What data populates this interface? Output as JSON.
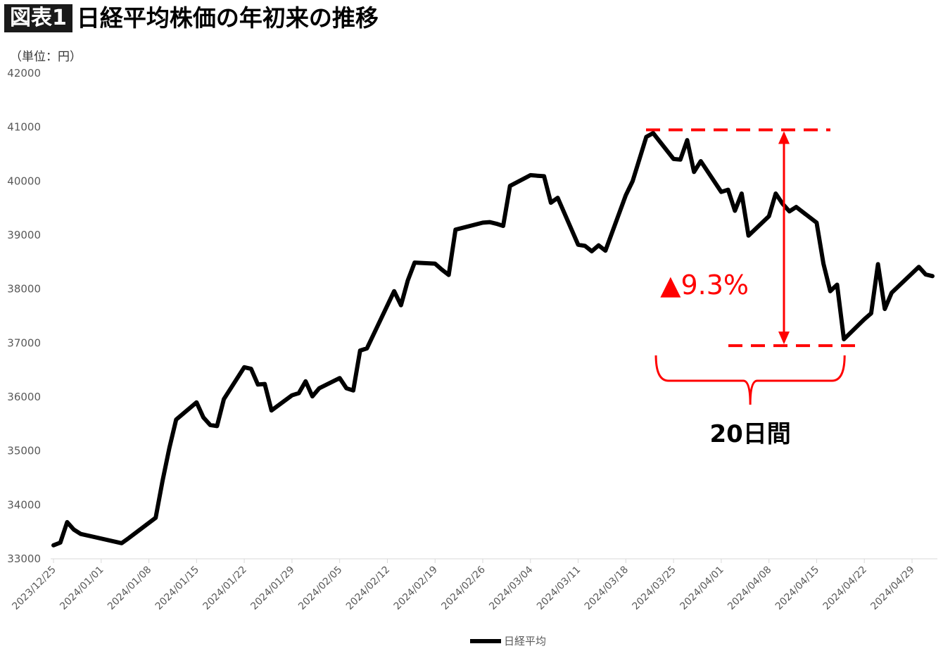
{
  "header": {
    "badge": "図表1",
    "title": "日経平均株価の年初来の推移"
  },
  "unit_label": "（単位：円）",
  "colors": {
    "line": "#000000",
    "annotation": "#ff0000",
    "tick_text": "#595959"
  },
  "chart_data": {
    "type": "line",
    "title": "日経平均株価の年初来の推移",
    "xlabel": "",
    "ylabel": "（単位：円）",
    "ylim": [
      33000,
      42000
    ],
    "yticks": [
      "33000",
      "34000",
      "35000",
      "36000",
      "37000",
      "38000",
      "39000",
      "40000",
      "41000",
      "42000"
    ],
    "xticks": [
      "2023/12/25",
      "2024/01/01",
      "2024/01/08",
      "2024/01/15",
      "2024/01/22",
      "2024/01/29",
      "2024/02/05",
      "2024/02/12",
      "2024/02/19",
      "2024/02/26",
      "2024/03/04",
      "2024/03/11",
      "2024/03/18",
      "2024/03/25",
      "2024/04/01",
      "2024/04/08",
      "2024/04/15",
      "2024/04/22",
      "2024/04/29"
    ],
    "legend": "bottom",
    "grid": false,
    "series": [
      {
        "name": "日経平均",
        "points": [
          [
            "2023/12/25",
            33250
          ],
          [
            "2023/12/26",
            33300
          ],
          [
            "2023/12/27",
            33680
          ],
          [
            "2023/12/28",
            33540
          ],
          [
            "2023/12/29",
            33460
          ],
          [
            "2024/01/04",
            33290
          ],
          [
            "2024/01/05",
            33380
          ],
          [
            "2024/01/09",
            33760
          ],
          [
            "2024/01/10",
            34440
          ],
          [
            "2024/01/11",
            35050
          ],
          [
            "2024/01/12",
            35580
          ],
          [
            "2024/01/15",
            35900
          ],
          [
            "2024/01/16",
            35620
          ],
          [
            "2024/01/17",
            35480
          ],
          [
            "2024/01/18",
            35460
          ],
          [
            "2024/01/19",
            35960
          ],
          [
            "2024/01/22",
            36550
          ],
          [
            "2024/01/23",
            36520
          ],
          [
            "2024/01/24",
            36230
          ],
          [
            "2024/01/25",
            36240
          ],
          [
            "2024/01/26",
            35750
          ],
          [
            "2024/01/29",
            36030
          ],
          [
            "2024/01/30",
            36070
          ],
          [
            "2024/01/31",
            36290
          ],
          [
            "2024/02/01",
            36010
          ],
          [
            "2024/02/02",
            36160
          ],
          [
            "2024/02/05",
            36350
          ],
          [
            "2024/02/06",
            36160
          ],
          [
            "2024/02/07",
            36120
          ],
          [
            "2024/02/08",
            36860
          ],
          [
            "2024/02/09",
            36900
          ],
          [
            "2024/02/13",
            37960
          ],
          [
            "2024/02/14",
            37700
          ],
          [
            "2024/02/15",
            38160
          ],
          [
            "2024/02/16",
            38490
          ],
          [
            "2024/02/19",
            38470
          ],
          [
            "2024/02/20",
            38360
          ],
          [
            "2024/02/21",
            38260
          ],
          [
            "2024/02/22",
            39100
          ],
          [
            "2024/02/26",
            39230
          ],
          [
            "2024/02/27",
            39240
          ],
          [
            "2024/02/28",
            39210
          ],
          [
            "2024/02/29",
            39170
          ],
          [
            "2024/03/01",
            39910
          ],
          [
            "2024/03/04",
            40110
          ],
          [
            "2024/03/05",
            40100
          ],
          [
            "2024/03/06",
            40090
          ],
          [
            "2024/03/07",
            39600
          ],
          [
            "2024/03/08",
            39690
          ],
          [
            "2024/03/11",
            38820
          ],
          [
            "2024/03/12",
            38800
          ],
          [
            "2024/03/13",
            38700
          ],
          [
            "2024/03/14",
            38810
          ],
          [
            "2024/03/15",
            38710
          ],
          [
            "2024/03/18",
            39740
          ],
          [
            "2024/03/19",
            40000
          ],
          [
            "2024/03/21",
            40820
          ],
          [
            "2024/03/22",
            40890
          ],
          [
            "2024/03/25",
            40410
          ],
          [
            "2024/03/26",
            40400
          ],
          [
            "2024/03/27",
            40760
          ],
          [
            "2024/03/28",
            40170
          ],
          [
            "2024/03/29",
            40370
          ],
          [
            "2024/04/01",
            39800
          ],
          [
            "2024/04/02",
            39840
          ],
          [
            "2024/04/03",
            39450
          ],
          [
            "2024/04/04",
            39770
          ],
          [
            "2024/04/05",
            38990
          ],
          [
            "2024/04/08",
            39350
          ],
          [
            "2024/04/09",
            39770
          ],
          [
            "2024/04/10",
            39580
          ],
          [
            "2024/04/11",
            39440
          ],
          [
            "2024/04/12",
            39520
          ],
          [
            "2024/04/15",
            39230
          ],
          [
            "2024/04/16",
            38470
          ],
          [
            "2024/04/17",
            37960
          ],
          [
            "2024/04/18",
            38080
          ],
          [
            "2024/04/19",
            37070
          ],
          [
            "2024/04/22",
            37440
          ],
          [
            "2024/04/23",
            37550
          ],
          [
            "2024/04/24",
            38460
          ],
          [
            "2024/04/25",
            37630
          ],
          [
            "2024/04/26",
            37930
          ],
          [
            "2024/04/30",
            38410
          ],
          [
            "2024/05/01",
            38270
          ],
          [
            "2024/05/02",
            38240
          ]
        ]
      }
    ],
    "annotations": {
      "drop_label": "▲9.3%",
      "drop_top_value": 40950,
      "drop_bottom_value": 36950,
      "period_label": "20日間",
      "period_start": "2024/03/22",
      "period_end": "2024/04/19"
    }
  }
}
